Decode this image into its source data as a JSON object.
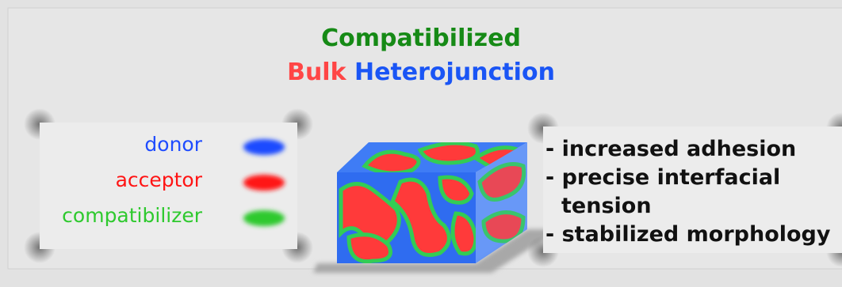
{
  "header": {
    "line1": "Compatibilized",
    "line2_a": "Bulk",
    "line2_b": "Heterojunction",
    "colors": {
      "line1": "#168a16",
      "line2_a": "#ff4545",
      "line2_b": "#1a55f5"
    }
  },
  "legend": {
    "items": [
      {
        "label": "donor",
        "color": "#1f4cff"
      },
      {
        "label": "acceptor",
        "color": "#ff1414"
      },
      {
        "label": "compatibilizer",
        "color": "#2ec92e"
      }
    ]
  },
  "notes": {
    "lines": [
      "- increased adhesion",
      "- precise interfacial",
      "tension",
      "- stabilized morphology"
    ]
  }
}
